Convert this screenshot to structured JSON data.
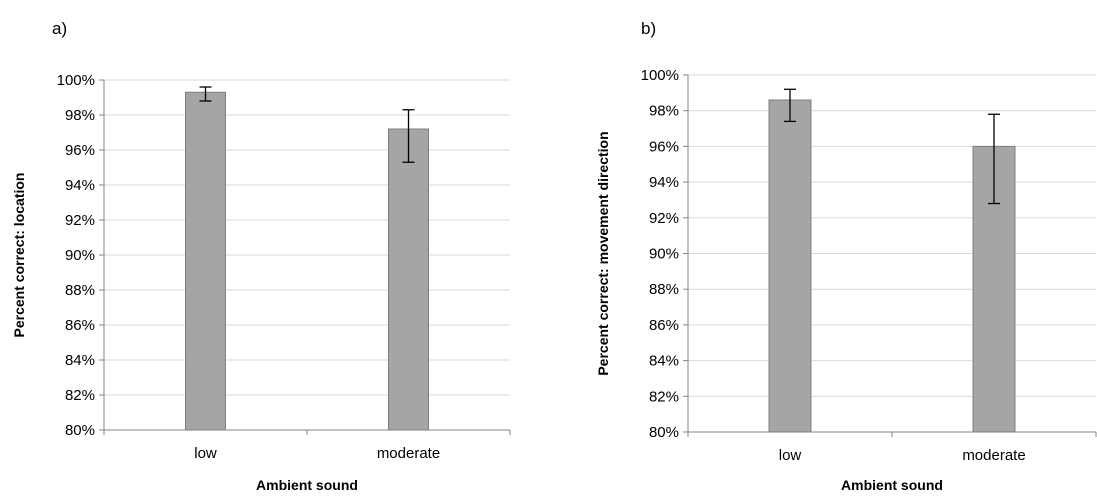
{
  "figure": {
    "colors": {
      "bar_fill": "#a5a5a5",
      "bar_stroke": "#7f7f7f",
      "grid": "#d9d9d9",
      "axis": "#868686",
      "error_bar": "#000000"
    }
  },
  "chart_data": [
    {
      "type": "bar",
      "panel_label": "a)",
      "title": "",
      "categories": [
        "low",
        "moderate"
      ],
      "values": [
        99.3,
        97.2
      ],
      "error_low": [
        98.8,
        95.3
      ],
      "error_high": [
        99.6,
        98.3
      ],
      "xlabel": "Ambient sound",
      "ylabel": "Percent correct: location",
      "ylim": [
        80,
        100
      ],
      "ytick_step": 2,
      "ytick_labels": [
        "80%",
        "82%",
        "84%",
        "86%",
        "88%",
        "90%",
        "92%",
        "94%",
        "96%",
        "98%",
        "100%"
      ],
      "grid": true,
      "legend": "none"
    },
    {
      "type": "bar",
      "panel_label": "b)",
      "title": "",
      "categories": [
        "low",
        "moderate"
      ],
      "values": [
        98.6,
        96.0
      ],
      "error_low": [
        97.4,
        92.8
      ],
      "error_high": [
        99.2,
        97.8
      ],
      "xlabel": "Ambient sound",
      "ylabel": "Percent correct: movement direction",
      "ylim": [
        80,
        100
      ],
      "ytick_step": 2,
      "ytick_labels": [
        "80%",
        "82%",
        "84%",
        "86%",
        "88%",
        "90%",
        "92%",
        "94%",
        "96%",
        "98%",
        "100%"
      ],
      "grid": true,
      "legend": "none"
    }
  ]
}
